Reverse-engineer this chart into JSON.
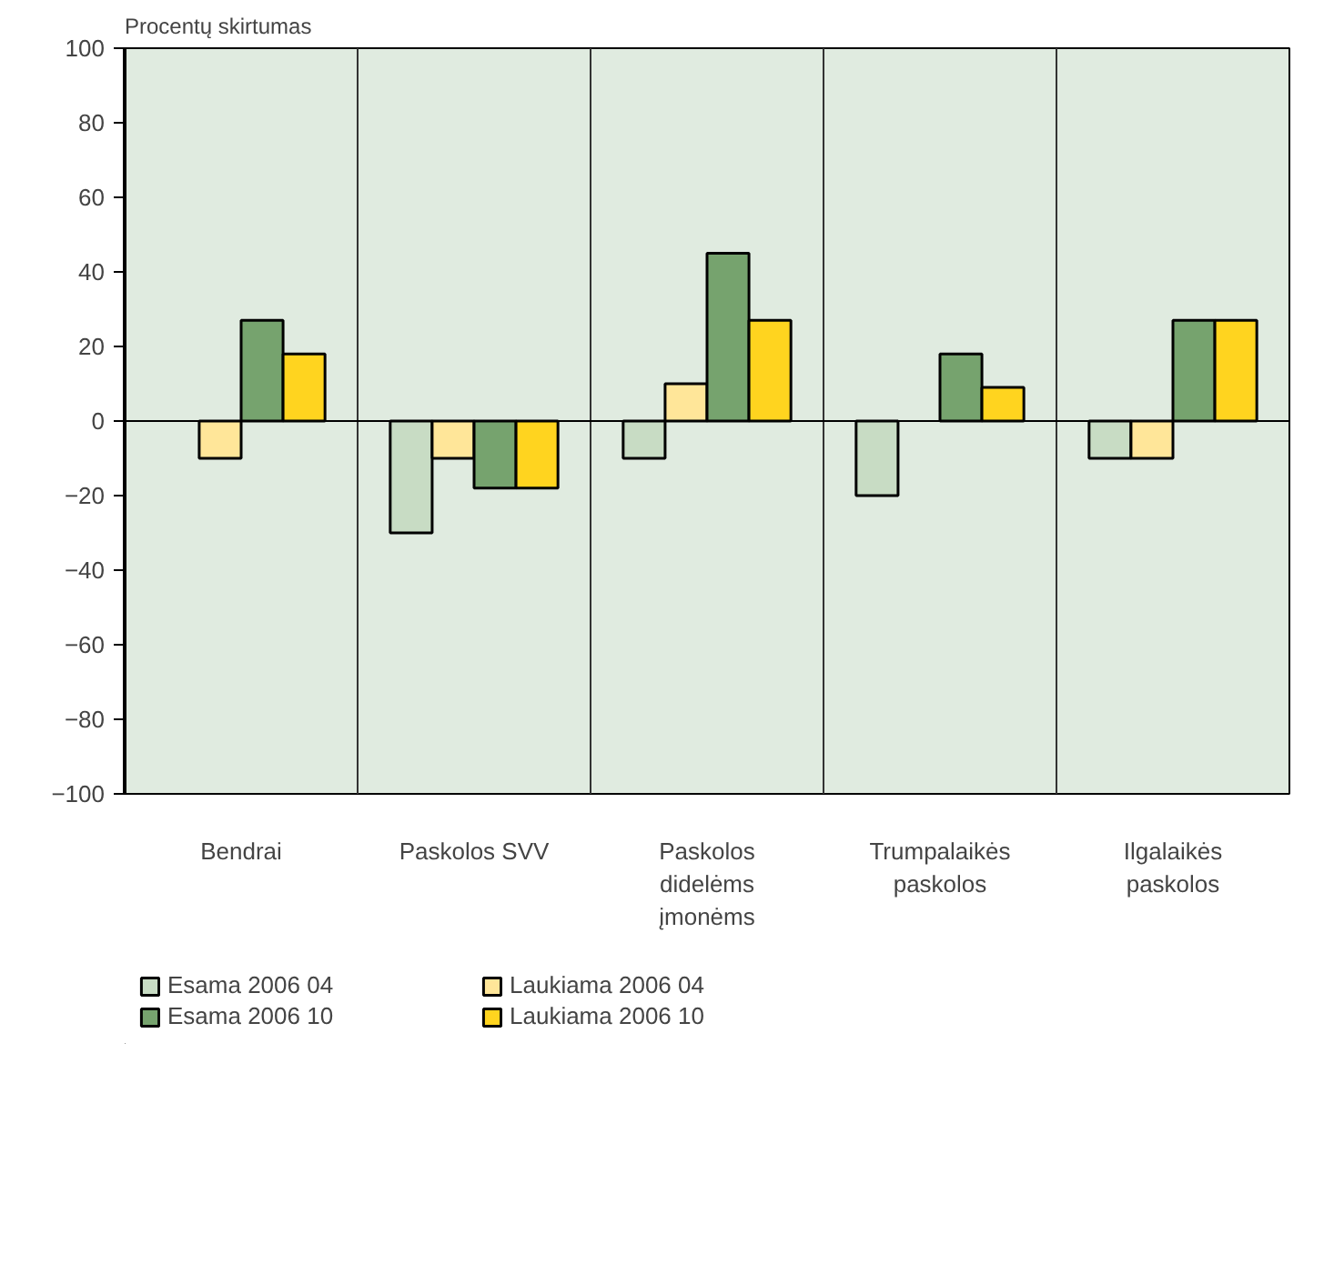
{
  "chart_data": {
    "type": "bar",
    "ylabel": "Procentų skirtumas",
    "categories": [
      "Bendrai",
      "Paskolos SVV",
      "Paskolos didelėms įmonėms",
      "Trumpalaikės paskolos",
      "Ilgalaikės paskolos"
    ],
    "series": [
      {
        "name": "Esama 2006 04",
        "color": "#c8dcc4",
        "values": [
          null,
          -30,
          -10,
          -20,
          -10
        ]
      },
      {
        "name": "Laukiama 2006 04",
        "color": "#ffe699",
        "values": [
          -10,
          -10,
          10,
          null,
          -10
        ]
      },
      {
        "name": "Esama 2006 10",
        "color": "#76a36e",
        "values": [
          27,
          -18,
          45,
          18,
          27
        ]
      },
      {
        "name": "Laukiama 2006 10",
        "color": "#ffd41f",
        "values": [
          18,
          -18,
          27,
          9,
          27
        ]
      }
    ],
    "ylim": [
      -100,
      100
    ],
    "yticks": [
      -100,
      -80,
      -60,
      -40,
      -20,
      0,
      20,
      40,
      60,
      80,
      100
    ],
    "grid": false,
    "legend": "bottom"
  }
}
